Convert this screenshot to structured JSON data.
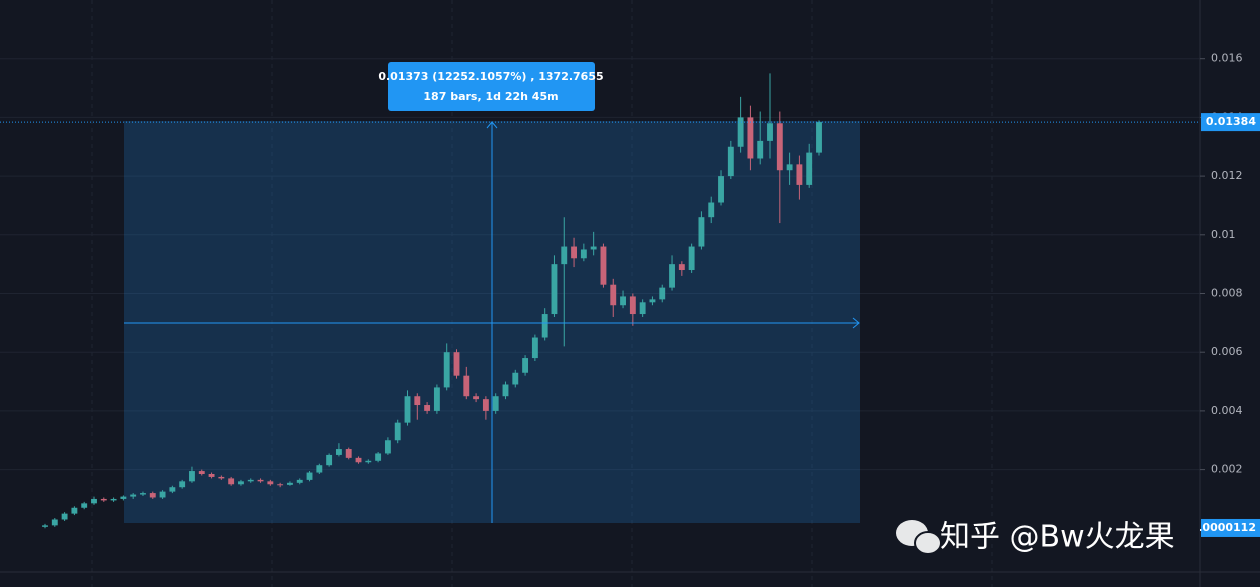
{
  "chart_data": {
    "type": "candlestick",
    "up_color": "#3aa6a4",
    "down_color": "#c86478",
    "ylim": [
      -0.002,
      0.018
    ],
    "yticks": [
      0.002,
      0.004,
      0.006,
      0.008,
      0.01,
      0.012,
      0.014,
      0.016
    ],
    "grid": true,
    "open": [
      5e-05,
      0.0001,
      0.0003,
      0.0005,
      0.0007,
      0.00085,
      0.001,
      0.00095,
      0.001,
      0.00108,
      0.00115,
      0.0012,
      0.00105,
      0.00125,
      0.0014,
      0.0016,
      0.00195,
      0.00185,
      0.00175,
      0.0017,
      0.0015,
      0.0016,
      0.00165,
      0.0016,
      0.0015,
      0.00148,
      0.00155,
      0.00165,
      0.0019,
      0.00215,
      0.0025,
      0.0027,
      0.0024,
      0.00225,
      0.0023,
      0.00255,
      0.003,
      0.0036,
      0.0045,
      0.0042,
      0.004,
      0.0048,
      0.006,
      0.0052,
      0.0045,
      0.0044,
      0.004,
      0.0045,
      0.0049,
      0.0053,
      0.0058,
      0.0065,
      0.0073,
      0.009,
      0.0096,
      0.0092,
      0.0095,
      0.0096,
      0.0083,
      0.0076,
      0.0079,
      0.0073,
      0.0077,
      0.0078,
      0.0082,
      0.009,
      0.0088,
      0.0096,
      0.0106,
      0.0111,
      0.012,
      0.013,
      0.014,
      0.0126,
      0.0132,
      0.0138,
      0.0122,
      0.0124,
      0.0117,
      0.0128
    ],
    "high": [
      0.00015,
      0.00035,
      0.00055,
      0.00075,
      0.0009,
      0.00108,
      0.00105,
      0.00105,
      0.00112,
      0.0012,
      0.00125,
      0.00125,
      0.0013,
      0.00145,
      0.00165,
      0.0021,
      0.002,
      0.0019,
      0.0018,
      0.00175,
      0.00165,
      0.0017,
      0.0017,
      0.00165,
      0.00155,
      0.0016,
      0.0017,
      0.00195,
      0.0022,
      0.00255,
      0.0029,
      0.00275,
      0.00245,
      0.00235,
      0.0026,
      0.0031,
      0.0037,
      0.0047,
      0.0046,
      0.0043,
      0.0049,
      0.0063,
      0.0061,
      0.0055,
      0.0046,
      0.0045,
      0.0046,
      0.005,
      0.0054,
      0.0059,
      0.0066,
      0.0075,
      0.0093,
      0.0106,
      0.0099,
      0.0097,
      0.0101,
      0.0097,
      0.0085,
      0.0081,
      0.008,
      0.0078,
      0.0079,
      0.0083,
      0.0093,
      0.0091,
      0.0097,
      0.0108,
      0.0113,
      0.0122,
      0.0132,
      0.0147,
      0.0144,
      0.0142,
      0.0155,
      0.0142,
      0.0128,
      0.0127,
      0.0131,
      0.0139
    ],
    "low": [
      0,
      5e-05,
      0.00025,
      0.00045,
      0.00065,
      0.0008,
      0.0009,
      0.0009,
      0.00095,
      0.001,
      0.0011,
      0.001,
      0.001,
      0.0012,
      0.00135,
      0.00155,
      0.0018,
      0.0017,
      0.00165,
      0.00145,
      0.00145,
      0.00155,
      0.00155,
      0.00145,
      0.0014,
      0.00145,
      0.0015,
      0.0016,
      0.00185,
      0.0021,
      0.00245,
      0.00235,
      0.0022,
      0.0022,
      0.00225,
      0.0025,
      0.0029,
      0.0035,
      0.0037,
      0.0039,
      0.0039,
      0.0047,
      0.0051,
      0.0044,
      0.0043,
      0.0037,
      0.0039,
      0.0044,
      0.0048,
      0.0052,
      0.0057,
      0.0064,
      0.0072,
      0.0062,
      0.0089,
      0.0091,
      0.0093,
      0.0082,
      0.0072,
      0.0075,
      0.0069,
      0.0072,
      0.0076,
      0.0077,
      0.0081,
      0.0086,
      0.0087,
      0.0095,
      0.0104,
      0.011,
      0.0119,
      0.0128,
      0.0122,
      0.0124,
      0.0126,
      0.0104,
      0.0117,
      0.0112,
      0.0116,
      0.0127
    ],
    "close": [
      0.0001,
      0.0003,
      0.0005,
      0.0007,
      0.00085,
      0.001,
      0.00095,
      0.001,
      0.00108,
      0.00115,
      0.0012,
      0.00105,
      0.00125,
      0.0014,
      0.0016,
      0.00195,
      0.00185,
      0.00175,
      0.0017,
      0.0015,
      0.0016,
      0.00165,
      0.0016,
      0.0015,
      0.00148,
      0.00155,
      0.00165,
      0.0019,
      0.00215,
      0.0025,
      0.0027,
      0.0024,
      0.00225,
      0.0023,
      0.00255,
      0.003,
      0.0036,
      0.0045,
      0.0042,
      0.004,
      0.0048,
      0.006,
      0.0052,
      0.0045,
      0.0044,
      0.004,
      0.0045,
      0.0049,
      0.0053,
      0.0058,
      0.0065,
      0.0073,
      0.009,
      0.0096,
      0.0092,
      0.0095,
      0.0096,
      0.0083,
      0.0076,
      0.0079,
      0.0073,
      0.0077,
      0.0078,
      0.0082,
      0.009,
      0.0088,
      0.0096,
      0.0106,
      0.0111,
      0.012,
      0.013,
      0.014,
      0.0126,
      0.0132,
      0.0138,
      0.0122,
      0.0124,
      0.0117,
      0.0128,
      0.01384
    ],
    "price_labels": [
      {
        "value": 0.01384,
        "color": "#2196f3"
      },
      {
        "value": 1.12e-05,
        "color": "#2196f3"
      }
    ],
    "measure_tooltip": [
      "0.01373 (12252.1057%) , 1372.7655",
      "187 bars, 1d 22h 45m"
    ]
  },
  "watermark": "知乎 @Bw火龙果"
}
